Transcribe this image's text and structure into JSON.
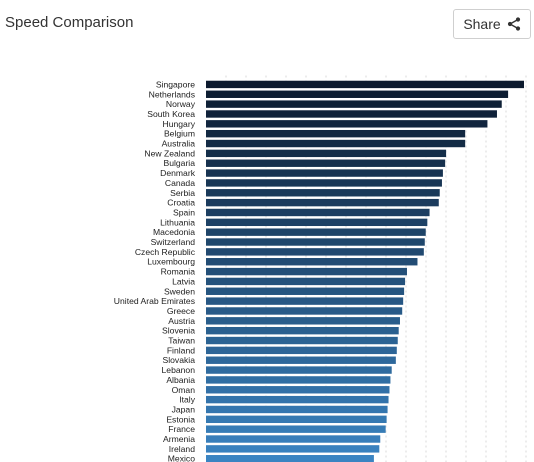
{
  "header": {
    "title": "Speed Comparison",
    "share_label": "Share",
    "share_icon": "share-icon"
  },
  "chart_data": {
    "type": "bar",
    "orientation": "horizontal",
    "title": "",
    "xlabel": "",
    "ylabel": "",
    "xlim": [
      0,
      100
    ],
    "grid": true,
    "colors": {
      "darkest": "#0c1a2e",
      "lightest": "#3a84c2"
    },
    "categories": [
      "Singapore",
      "Netherlands",
      "Norway",
      "South Korea",
      "Hungary",
      "Belgium",
      "Australia",
      "New Zealand",
      "Bulgaria",
      "Denmark",
      "Canada",
      "Serbia",
      "Croatia",
      "Spain",
      "Lithuania",
      "Macedonia",
      "Switzerland",
      "Czech Republic",
      "Luxembourg",
      "Romania",
      "Latvia",
      "Sweden",
      "United Arab Emirates",
      "Greece",
      "Austria",
      "Slovenia",
      "Taiwan",
      "Finland",
      "Slovakia",
      "Lebanon",
      "Albania",
      "Oman",
      "Italy",
      "Japan",
      "Estonia",
      "France",
      "Armenia",
      "Ireland",
      "Mexico"
    ],
    "values": [
      100,
      95,
      93,
      91.5,
      88.5,
      81.5,
      81.5,
      75.5,
      75.2,
      74.5,
      74.2,
      73.5,
      73.2,
      70.3,
      69.6,
      69.1,
      68.8,
      68.5,
      66.5,
      63.2,
      62.6,
      62.3,
      62.0,
      61.7,
      61.0,
      60.6,
      60.3,
      60.0,
      59.7,
      58.4,
      58.0,
      57.7,
      57.4,
      57.1,
      56.8,
      56.5,
      54.8,
      54.5,
      52.8
    ]
  }
}
